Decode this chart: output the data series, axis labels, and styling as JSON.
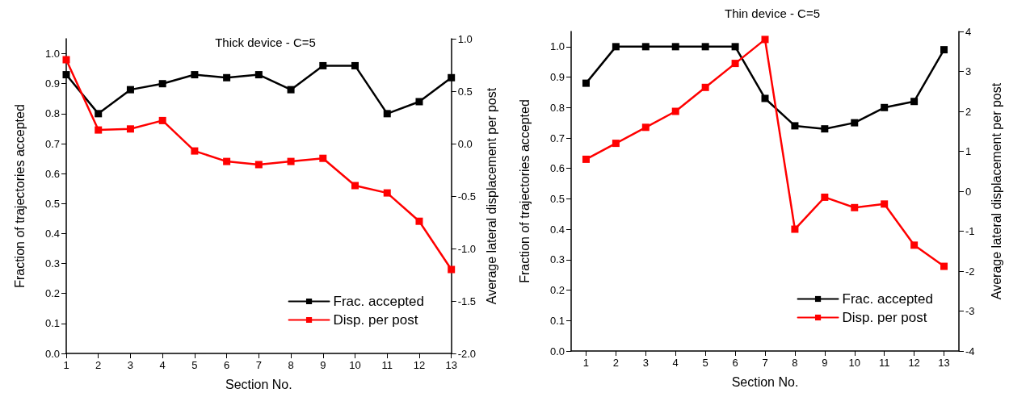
{
  "chart_data": [
    {
      "type": "line",
      "title": "Thick device - C=5",
      "xlabel": "Section No.",
      "ylabel": "Fraction of trajectories accepted",
      "y2label": "Average lateral displacement per post",
      "x": [
        1,
        2,
        3,
        4,
        5,
        6,
        7,
        8,
        9,
        10,
        11,
        12,
        13
      ],
      "series": [
        {
          "name": "Frac. accepted",
          "color": "#000000",
          "values": [
            0.93,
            0.8,
            0.88,
            0.9,
            0.93,
            0.92,
            0.93,
            0.88,
            0.96,
            0.96,
            0.8,
            0.84,
            0.92
          ]
        },
        {
          "name": "Disp. per post",
          "color": "#ff0000",
          "axis": "y2",
          "values": [
            0.8,
            0.13,
            0.14,
            0.22,
            -0.07,
            -0.17,
            -0.2,
            -0.17,
            -0.14,
            -0.4,
            -0.47,
            -0.74,
            -1.2
          ]
        }
      ],
      "xlim": [
        1,
        13
      ],
      "xticks": [
        1,
        2,
        3,
        4,
        5,
        6,
        7,
        8,
        9,
        10,
        11,
        12,
        13
      ],
      "ylim": [
        0,
        1.05
      ],
      "yticks": [
        {
          "value": 0,
          "label": "0.0"
        },
        {
          "value": 0.1,
          "label": "0.1"
        },
        {
          "value": 0.2,
          "label": "0.2"
        },
        {
          "value": 0.3,
          "label": "0.3"
        },
        {
          "value": 0.4,
          "label": "0.4"
        },
        {
          "value": 0.5,
          "label": "0.5"
        },
        {
          "value": 0.6,
          "label": "0.6"
        },
        {
          "value": 0.7,
          "label": "0.7"
        },
        {
          "value": 0.8,
          "label": "0.8"
        },
        {
          "value": 0.9,
          "label": "0.9"
        },
        {
          "value": 1,
          "label": "1.0"
        }
      ],
      "y2lim": [
        -2,
        1
      ],
      "y2ticks": [
        {
          "value": -2,
          "label": "-2.0"
        },
        {
          "value": -1.5,
          "label": "-1.5"
        },
        {
          "value": -1,
          "label": "-1.0"
        },
        {
          "value": -0.5,
          "label": "-0.5"
        },
        {
          "value": 0,
          "label": "0.0"
        },
        {
          "value": 0.5,
          "label": "0.5"
        },
        {
          "value": 1,
          "label": "1.0"
        }
      ],
      "grid": false,
      "legend": "bottom right",
      "marker": "square",
      "line_style": "solid"
    },
    {
      "type": "line",
      "title": "Thin device - C=5",
      "xlabel": "Section No.",
      "ylabel": "Fraction of trajectories accepted",
      "y2label": "Average lateral displacement per post",
      "x": [
        1,
        2,
        3,
        4,
        5,
        6,
        7,
        8,
        9,
        10,
        11,
        12,
        13
      ],
      "series": [
        {
          "name": "Frac. accepted",
          "color": "#000000",
          "values": [
            0.88,
            1.0,
            1.0,
            1.0,
            1.0,
            1.0,
            0.83,
            0.74,
            0.73,
            0.75,
            0.8,
            0.82,
            0.99
          ]
        },
        {
          "name": "Disp. per post",
          "color": "#ff0000",
          "axis": "y2",
          "values": [
            0.8,
            1.2,
            1.6,
            2.0,
            2.6,
            3.2,
            3.8,
            -0.95,
            -0.15,
            -0.41,
            -0.32,
            -1.35,
            -1.88
          ]
        }
      ],
      "xlim": [
        0.5,
        13.5
      ],
      "xticks": [
        1,
        2,
        3,
        4,
        5,
        6,
        7,
        8,
        9,
        10,
        11,
        12,
        13
      ],
      "ylim": [
        0,
        1.05
      ],
      "yticks": [
        {
          "value": 0,
          "label": "0.0"
        },
        {
          "value": 0.1,
          "label": "0.1"
        },
        {
          "value": 0.2,
          "label": "0.2"
        },
        {
          "value": 0.3,
          "label": "0.3"
        },
        {
          "value": 0.4,
          "label": "0.4"
        },
        {
          "value": 0.5,
          "label": "0.5"
        },
        {
          "value": 0.6,
          "label": "0.6"
        },
        {
          "value": 0.7,
          "label": "0.7"
        },
        {
          "value": 0.8,
          "label": "0.8"
        },
        {
          "value": 0.9,
          "label": "0.9"
        },
        {
          "value": 1,
          "label": "1.0"
        }
      ],
      "y2lim": [
        -4,
        4
      ],
      "y2ticks": [
        -4,
        -3,
        -2,
        -1,
        0,
        1,
        2,
        3,
        4
      ],
      "grid": false,
      "legend": "bottom right",
      "marker": "square",
      "line_style": "solid"
    }
  ]
}
